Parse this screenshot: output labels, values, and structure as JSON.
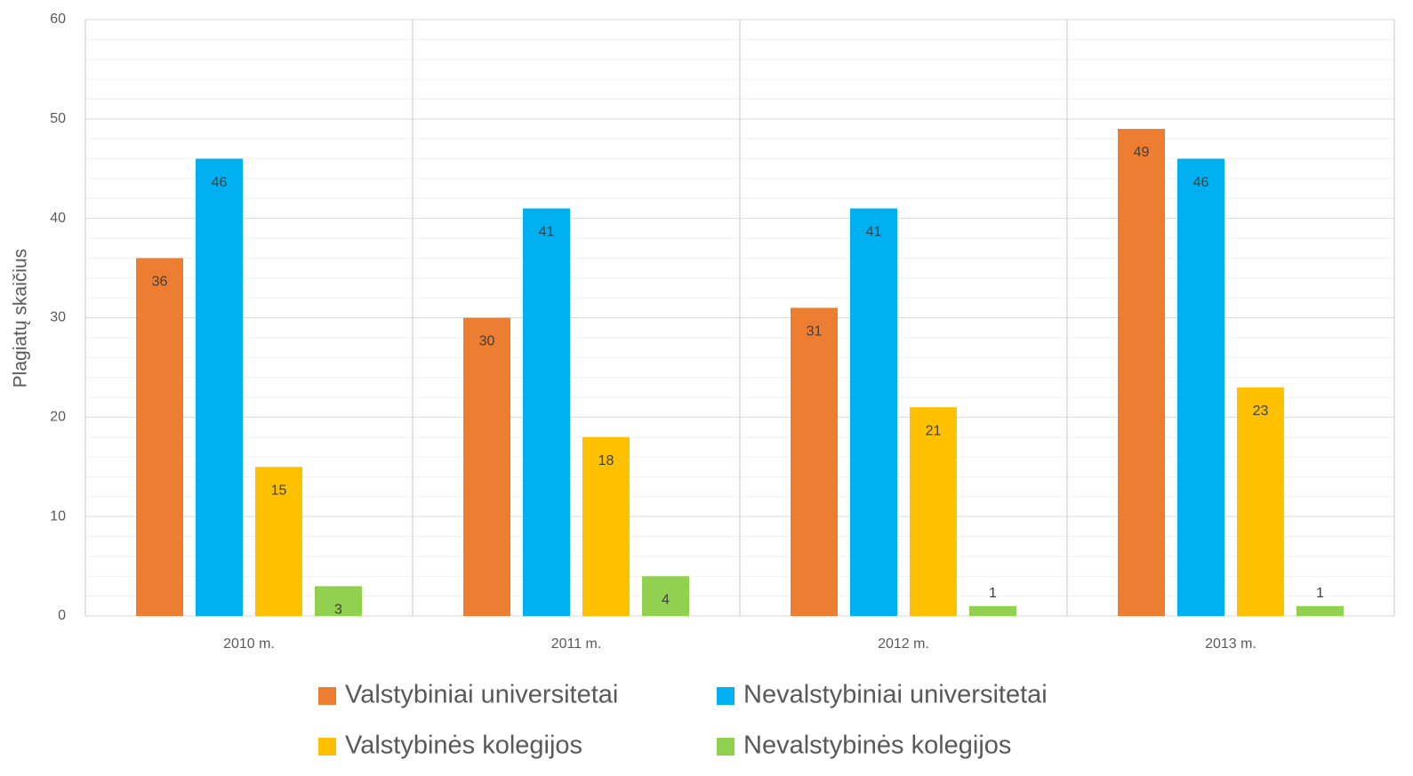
{
  "chart_data": {
    "type": "bar",
    "y_label": "Plagiatų skaičius",
    "categories": [
      "2010 m.",
      "2011 m.",
      "2012 m.",
      "2013 m."
    ],
    "series": [
      {
        "name": "Valstybiniai universitetai",
        "color": "#ed7d31",
        "values": [
          36,
          30,
          31,
          49
        ]
      },
      {
        "name": "Nevalstybiniai universitetai",
        "color": "#00b0f0",
        "values": [
          46,
          41,
          41,
          46
        ]
      },
      {
        "name": "Valstybinės kolegijos",
        "color": "#ffc000",
        "values": [
          15,
          18,
          21,
          23
        ]
      },
      {
        "name": "Nevalstybinės kolegijos",
        "color": "#92d050",
        "values": [
          3,
          4,
          1,
          1
        ]
      }
    ],
    "ylim": [
      0,
      60
    ],
    "yticks": [
      0,
      10,
      20,
      30,
      40,
      50,
      60
    ],
    "grid": true,
    "minor_grid": true,
    "legend": "bottom"
  }
}
